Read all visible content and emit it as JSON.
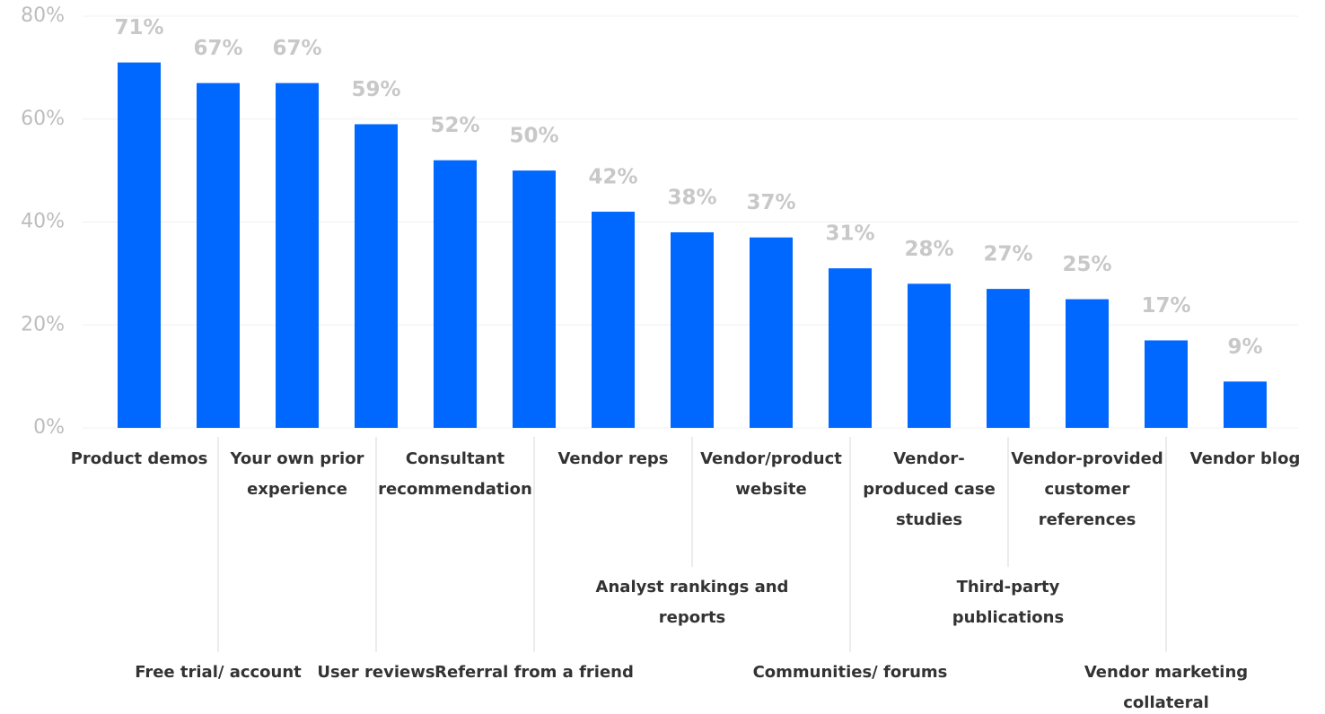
{
  "chart_data": {
    "type": "bar",
    "categories": [
      "Product demos",
      "Free trial/ account",
      "Your own prior experience",
      "User reviews",
      "Consultant recommendation",
      "Referral from a friend",
      "Vendor reps",
      "Analyst rankings and reports",
      "Vendor/product website",
      "Communities/ forums",
      "Vendor-produced case studies",
      "Third-party publications",
      "Vendor-provided customer references",
      "Vendor marketing collateral",
      "Vendor blog"
    ],
    "values": [
      71,
      67,
      67,
      59,
      52,
      50,
      42,
      38,
      37,
      31,
      28,
      27,
      25,
      17,
      9
    ],
    "value_labels": [
      "71%",
      "67%",
      "67%",
      "59%",
      "52%",
      "50%",
      "42%",
      "38%",
      "37%",
      "31%",
      "28%",
      "27%",
      "25%",
      "17%",
      "9%"
    ],
    "color": "#0068ff",
    "ylim": [
      0,
      80
    ],
    "yticks": [
      {
        "value": 0,
        "label": "0%"
      },
      {
        "value": 20,
        "label": "20%"
      },
      {
        "value": 40,
        "label": "40%"
      },
      {
        "value": 60,
        "label": "60%"
      },
      {
        "value": 80,
        "label": "80%"
      }
    ],
    "grid": true
  }
}
